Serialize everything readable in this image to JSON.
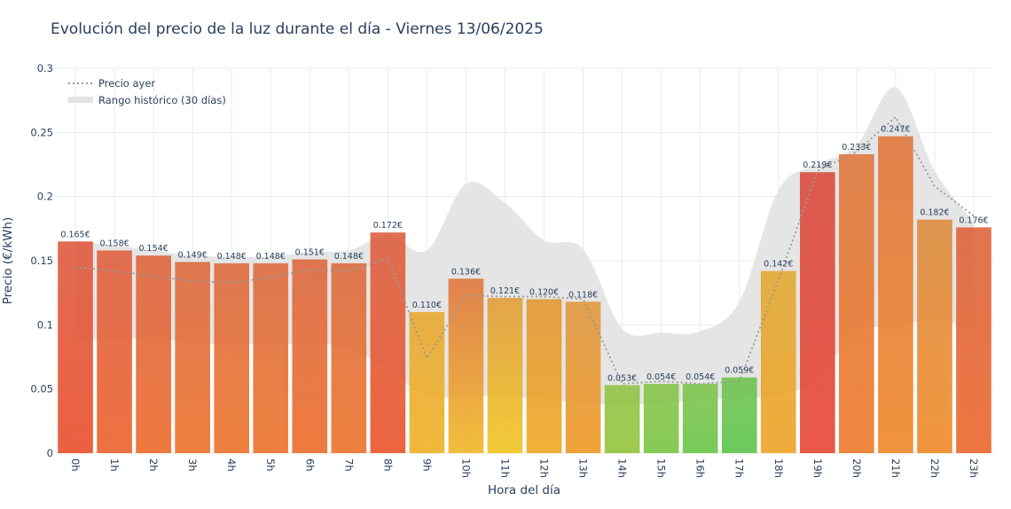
{
  "chart_data": {
    "type": "bar",
    "title": "Evolución del precio de la luz durante el día - Viernes 13/06/2025",
    "xlabel": "Hora del día",
    "ylabel": "Precio (€/kWh)",
    "ylim": [
      0,
      0.3
    ],
    "yticks": [
      0,
      0.05,
      0.1,
      0.15,
      0.2,
      0.25,
      0.3
    ],
    "ytick_labels": [
      "0",
      "0.05",
      "0.1",
      "0.15",
      "0.2",
      "0.25",
      "0.3"
    ],
    "categories": [
      "0h",
      "1h",
      "2h",
      "3h",
      "4h",
      "5h",
      "6h",
      "7h",
      "8h",
      "9h",
      "10h",
      "11h",
      "12h",
      "13h",
      "14h",
      "15h",
      "16h",
      "17h",
      "18h",
      "19h",
      "20h",
      "21h",
      "22h",
      "23h"
    ],
    "values": [
      0.165,
      0.158,
      0.154,
      0.149,
      0.148,
      0.148,
      0.151,
      0.148,
      0.172,
      0.11,
      0.136,
      0.121,
      0.12,
      0.118,
      0.053,
      0.054,
      0.054,
      0.059,
      0.142,
      0.219,
      0.233,
      0.247,
      0.182,
      0.176
    ],
    "value_labels": [
      "0.165€",
      "0.158€",
      "0.154€",
      "0.149€",
      "0.148€",
      "0.148€",
      "0.151€",
      "0.148€",
      "0.172€",
      "0.110€",
      "0.136€",
      "0.121€",
      "0.120€",
      "0.118€",
      "0.053€",
      "0.054€",
      "0.054€",
      "0.059€",
      "0.142€",
      "0.219€",
      "0.233€",
      "0.247€",
      "0.182€",
      "0.176€"
    ],
    "bar_colors_top": [
      "#de563a",
      "#de5d3a",
      "#de613a",
      "#dd673b",
      "#dd683b",
      "#dd683b",
      "#dd653b",
      "#dd683b",
      "#dd5c3a",
      "#e8a82e",
      "#e0743a",
      "#e29c34",
      "#e2952e",
      "#e0963c",
      "#8fc342",
      "#85c346",
      "#7cc348",
      "#6ec24a",
      "#e2a82e",
      "#d9483a",
      "#df7538",
      "#e07438",
      "#dd8a3a",
      "#dd6036"
    ],
    "bar_colors_bottom": [
      "#ea5230",
      "#ec6530",
      "#ed6d2f",
      "#ed742e",
      "#ed762e",
      "#ed762e",
      "#ed702e",
      "#ed762e",
      "#ea5830",
      "#efb22a",
      "#f0b92a",
      "#f1c626",
      "#efaa28",
      "#ef9b28",
      "#95c53e",
      "#7cc646",
      "#6cc64a",
      "#5fc64e",
      "#eea42a",
      "#e84a38",
      "#ee7b2e",
      "#ef8a2c",
      "#ef8c2c",
      "#ec6a30"
    ],
    "series": [
      {
        "name": "Precio ayer",
        "style": "dotted-line",
        "color": "#999999",
        "values": [
          0.145,
          0.142,
          0.138,
          0.134,
          0.133,
          0.137,
          0.143,
          0.142,
          0.152,
          0.074,
          0.123,
          0.122,
          0.122,
          0.12,
          0.054,
          0.056,
          0.054,
          0.056,
          0.135,
          0.22,
          0.235,
          0.262,
          0.208,
          0.185
        ]
      },
      {
        "name": "Rango histórico (30 días)",
        "style": "band",
        "color": "#e0e0e0",
        "upper": [
          0.165,
          0.162,
          0.158,
          0.154,
          0.153,
          0.153,
          0.157,
          0.158,
          0.17,
          0.158,
          0.21,
          0.195,
          0.166,
          0.159,
          0.097,
          0.094,
          0.095,
          0.118,
          0.205,
          0.225,
          0.24,
          0.285,
          0.22,
          0.18
        ],
        "lower": [
          0.088,
          0.088,
          0.09,
          0.085,
          0.085,
          0.085,
          0.085,
          0.082,
          0.065,
          0.044,
          0.045,
          0.044,
          0.042,
          0.039,
          0.038,
          0.039,
          0.041,
          0.043,
          0.045,
          0.058,
          0.095,
          0.098,
          0.105,
          0.095
        ]
      }
    ],
    "legend_position": "top-left",
    "grid": true
  }
}
